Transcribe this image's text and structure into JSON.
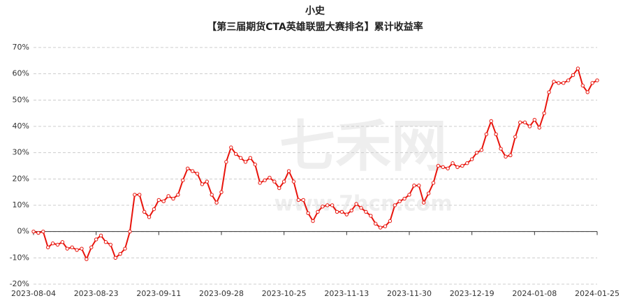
{
  "chart_data": {
    "type": "line",
    "title": "小史",
    "subtitle": "【第三届期货CTA英雄联盟大赛排名】累计收益率",
    "watermark": [
      "七禾网",
      "www.7hcn.com"
    ],
    "categories": [
      "2023-08-04",
      null,
      null,
      null,
      null,
      null,
      null,
      null,
      null,
      null,
      null,
      null,
      null,
      "2023-08-23",
      null,
      null,
      null,
      null,
      null,
      null,
      null,
      null,
      null,
      null,
      null,
      null,
      "2023-09-11",
      null,
      null,
      null,
      null,
      null,
      null,
      null,
      null,
      null,
      null,
      null,
      null,
      "2023-09-28",
      null,
      null,
      null,
      null,
      null,
      null,
      null,
      null,
      null,
      null,
      null,
      null,
      "2023-10-25",
      null,
      null,
      null,
      null,
      null,
      null,
      null,
      null,
      null,
      null,
      null,
      null,
      "2023-11-13",
      null,
      null,
      null,
      null,
      null,
      null,
      null,
      null,
      null,
      null,
      null,
      null,
      "2023-11-30",
      null,
      null,
      null,
      null,
      null,
      null,
      null,
      null,
      null,
      null,
      null,
      null,
      "2023-12-19",
      null,
      null,
      null,
      null,
      null,
      null,
      null,
      null,
      null,
      null,
      null,
      null,
      "2024-01-08",
      null,
      null,
      null,
      null,
      null,
      null,
      null,
      null,
      null,
      null,
      null,
      null,
      "2024-01-25"
    ],
    "series": [
      {
        "name": "累计收益率",
        "color": "#e8140c",
        "values": [
          0,
          -0.5,
          0,
          -6,
          -4.5,
          -5,
          -4,
          -6.5,
          -6,
          -7,
          -6.5,
          -10.5,
          -6,
          -3,
          -1.5,
          -4,
          -5,
          -10,
          -8.5,
          -6.5,
          0,
          14,
          14,
          7.5,
          5.5,
          8.5,
          12,
          11.5,
          13.5,
          12.5,
          14,
          19.5,
          24,
          23,
          22,
          18,
          19,
          14,
          11,
          15,
          26.5,
          32,
          29.5,
          28,
          26.5,
          28,
          25.5,
          18.5,
          19.5,
          20.5,
          19,
          16.5,
          19,
          23,
          19,
          12,
          12,
          7,
          4,
          7.5,
          9.5,
          10,
          10,
          7.5,
          7.5,
          6.5,
          8,
          10.5,
          9,
          7.5,
          6,
          3,
          1.5,
          2,
          4,
          10,
          11.5,
          12.5,
          14,
          17.5,
          17.5,
          11,
          14.5,
          18.5,
          25,
          24.5,
          24,
          26,
          24.5,
          25,
          26,
          27.5,
          30,
          31,
          37,
          42,
          37,
          31.5,
          28.5,
          29,
          36,
          41.5,
          41.5,
          40,
          42.5,
          39.5,
          45,
          53,
          57,
          56.5,
          56.5,
          57.5,
          59.5,
          62,
          55.5,
          53,
          56.5,
          57.5
        ]
      }
    ],
    "ylim": [
      -20,
      70
    ],
    "yticks": [
      {
        "value": -20,
        "label": "-20%"
      },
      {
        "value": -10,
        "label": "-10%"
      },
      {
        "value": 0,
        "label": "0%"
      },
      {
        "value": 10,
        "label": "10%"
      },
      {
        "value": 20,
        "label": "20%"
      },
      {
        "value": 30,
        "label": "30%"
      },
      {
        "value": 40,
        "label": "40%"
      },
      {
        "value": 50,
        "label": "50%"
      },
      {
        "value": 60,
        "label": "60%"
      },
      {
        "value": 70,
        "label": "70%"
      }
    ],
    "grid": true
  }
}
